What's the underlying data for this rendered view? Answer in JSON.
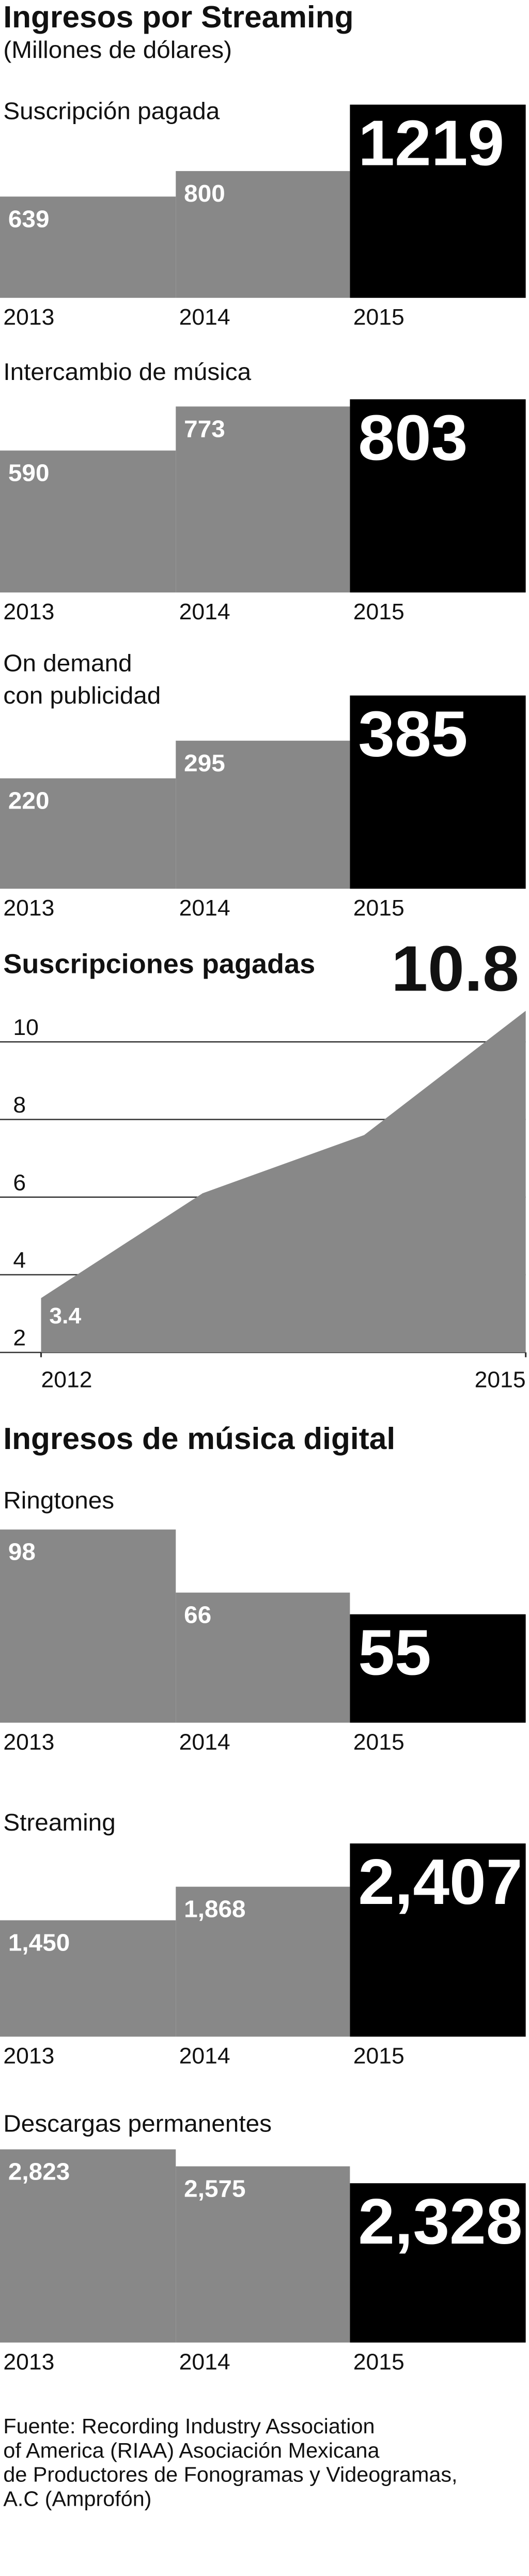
{
  "chart_data": [
    {
      "type": "bar",
      "title": "Ingresos por Streaming",
      "subtitle": "(Millones de dólares)",
      "panel_title": [
        "Suscripción pagada"
      ],
      "categories": [
        "2013",
        "2014",
        "2015"
      ],
      "values": [
        639,
        800,
        1219
      ]
    },
    {
      "type": "bar",
      "panel_title": [
        "Intercambio de música"
      ],
      "categories": [
        "2013",
        "2014",
        "2015"
      ],
      "values": [
        590,
        773,
        803
      ]
    },
    {
      "type": "bar",
      "panel_title": [
        "On demand",
        "con publicidad"
      ],
      "categories": [
        "2013",
        "2014",
        "2015"
      ],
      "values": [
        220,
        295,
        385
      ]
    },
    {
      "type": "area",
      "title": "Suscripciones pagadas",
      "x": [
        2012,
        2013,
        2014,
        2015
      ],
      "values": [
        3.4,
        6.1,
        7.6,
        10.8
      ],
      "value_labels": [
        "3.4",
        null,
        null,
        "10.8"
      ],
      "xlim": [
        2012,
        2015
      ],
      "xticks": [
        2012,
        2015
      ],
      "ylim": [
        2,
        11
      ],
      "yticks": [
        2,
        4,
        6,
        8,
        10
      ],
      "grid": true,
      "color": "#888888"
    },
    {
      "type": "bar",
      "title": "Ingresos de música digital",
      "panel_title": [
        "Ringtones"
      ],
      "categories": [
        "2013",
        "2014",
        "2015"
      ],
      "values": [
        98,
        66,
        55
      ]
    },
    {
      "type": "bar",
      "panel_title": [
        "Streaming"
      ],
      "categories": [
        "2013",
        "2014",
        "2015"
      ],
      "values": [
        1450,
        1868,
        2407
      ],
      "value_labels": [
        "1,450",
        "1,868",
        "2,407"
      ]
    },
    {
      "type": "bar",
      "panel_title": [
        "Descargas permanentes"
      ],
      "categories": [
        "2013",
        "2014",
        "2015"
      ],
      "values": [
        2823,
        2575,
        2328
      ],
      "value_labels": [
        "2,823",
        "2,575",
        "2,328"
      ]
    }
  ],
  "source": [
    "Fuente: Recording Industry Association",
    "of America (RIAA) Asociación Mexicana",
    "de Productores de Fonogramas y Videogramas,",
    "A.C (Amprofón)"
  ]
}
